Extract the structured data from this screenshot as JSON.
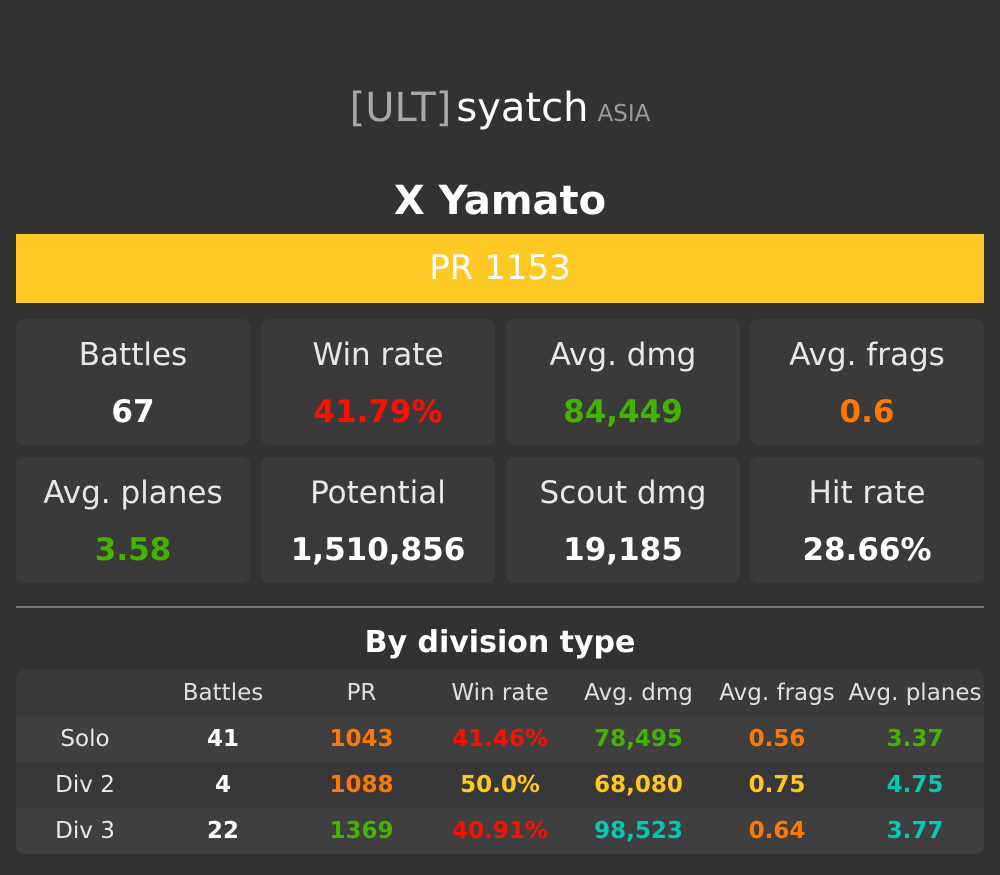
{
  "header": {
    "clan_tag": "[ULT]",
    "player_name": "syatch",
    "region": "ASIA"
  },
  "ship": {
    "name": "X Yamato",
    "pr_label": "PR 1153",
    "pr_color": "#ffc925"
  },
  "stats": [
    {
      "label": "Battles",
      "value": "67",
      "color": "#ffffff"
    },
    {
      "label": "Win rate",
      "value": "41.79%",
      "color": "#fe0e00"
    },
    {
      "label": "Avg. dmg",
      "value": "84,449",
      "color": "#44b300"
    },
    {
      "label": "Avg. frags",
      "value": "0.6",
      "color": "#fe7903"
    },
    {
      "label": "Avg. planes",
      "value": "3.58",
      "color": "#44b300"
    },
    {
      "label": "Potential",
      "value": "1,510,856",
      "color": "#ffffff"
    },
    {
      "label": "Scout dmg",
      "value": "19,185",
      "color": "#ffffff"
    },
    {
      "label": "Hit rate",
      "value": "28.66%",
      "color": "#ffffff"
    }
  ],
  "division": {
    "title": "By division type",
    "columns": [
      "",
      "Battles",
      "PR",
      "Win rate",
      "Avg. dmg",
      "Avg. frags",
      "Avg. planes"
    ],
    "rows": [
      {
        "cells": [
          "Solo",
          "41",
          "1043",
          "41.46%",
          "78,495",
          "0.56",
          "3.37"
        ],
        "colors": [
          "#e8e8e8",
          "#ffffff",
          "#fe7903",
          "#fe0e00",
          "#44b300",
          "#fe7903",
          "#44b300"
        ]
      },
      {
        "cells": [
          "Div 2",
          "4",
          "1088",
          "50.0%",
          "68,080",
          "0.75",
          "4.75"
        ],
        "colors": [
          "#e8e8e8",
          "#ffffff",
          "#fe7903",
          "#ffc71f",
          "#ffc71f",
          "#ffc71f",
          "#02c9b3"
        ]
      },
      {
        "cells": [
          "Div 3",
          "22",
          "1369",
          "40.91%",
          "98,523",
          "0.64",
          "3.77"
        ],
        "colors": [
          "#e8e8e8",
          "#ffffff",
          "#44b300",
          "#fe0e00",
          "#02c9b3",
          "#fe7903",
          "#02c9b3"
        ]
      }
    ]
  }
}
